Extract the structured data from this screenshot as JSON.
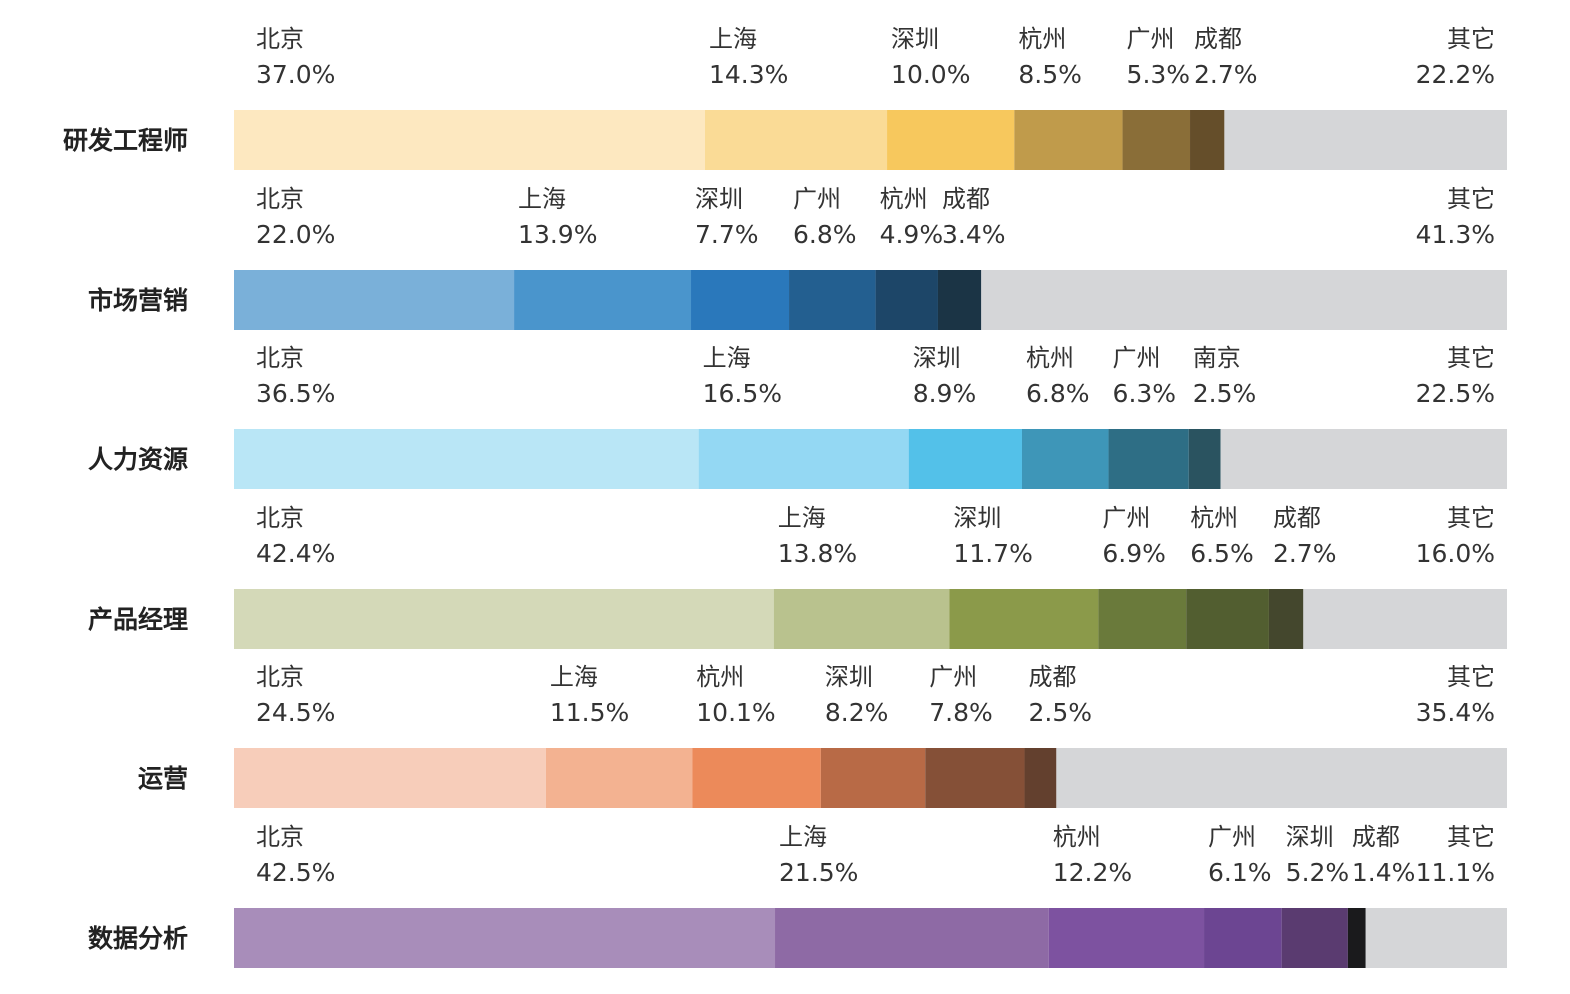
{
  "chart_data": {
    "type": "bar",
    "orientation": "horizontal-stacked-100",
    "title": "",
    "xlabel": "",
    "ylabel": "",
    "xlim": [
      0,
      100
    ],
    "grid": false,
    "legend": "none",
    "categories": [
      "研发工程师",
      "市场营销",
      "人力资源",
      "产品经理",
      "运营",
      "数据分析"
    ],
    "rows": [
      {
        "category": "研发工程师",
        "segments": [
          {
            "name": "北京",
            "value": 37.0,
            "label": "37.0%",
            "color": "#FDE8C0"
          },
          {
            "name": "上海",
            "value": 14.3,
            "label": "14.3%",
            "color": "#FADB96"
          },
          {
            "name": "深圳",
            "value": 10.0,
            "label": "10.0%",
            "color": "#F7C85D"
          },
          {
            "name": "杭州",
            "value": 8.5,
            "label": "8.5%",
            "color": "#C09B4B"
          },
          {
            "name": "广州",
            "value": 5.3,
            "label": "5.3%",
            "color": "#8A6E38"
          },
          {
            "name": "成都",
            "value": 2.7,
            "label": "2.7%",
            "color": "#654E2A"
          },
          {
            "name": "其它",
            "value": 22.2,
            "label": "22.2%",
            "color": "#D5D6D8"
          }
        ]
      },
      {
        "category": "市场营销",
        "segments": [
          {
            "name": "北京",
            "value": 22.0,
            "label": "22.0%",
            "color": "#7AB0D9"
          },
          {
            "name": "上海",
            "value": 13.9,
            "label": "13.9%",
            "color": "#4A95CC"
          },
          {
            "name": "深圳",
            "value": 7.7,
            "label": "7.7%",
            "color": "#2A78BB"
          },
          {
            "name": "广州",
            "value": 6.8,
            "label": "6.8%",
            "color": "#235F90"
          },
          {
            "name": "杭州",
            "value": 4.9,
            "label": "4.9%",
            "color": "#1D4668"
          },
          {
            "name": "成都",
            "value": 3.4,
            "label": "3.4%",
            "color": "#1B3445"
          },
          {
            "name": "其它",
            "value": 41.3,
            "label": "41.3%",
            "color": "#D5D6D8"
          }
        ]
      },
      {
        "category": "人力资源",
        "segments": [
          {
            "name": "北京",
            "value": 36.5,
            "label": "36.5%",
            "color": "#B9E6F6"
          },
          {
            "name": "上海",
            "value": 16.5,
            "label": "16.5%",
            "color": "#94D8F3"
          },
          {
            "name": "深圳",
            "value": 8.9,
            "label": "8.9%",
            "color": "#53C1E9"
          },
          {
            "name": "杭州",
            "value": 6.8,
            "label": "6.8%",
            "color": "#3E96B8"
          },
          {
            "name": "广州",
            "value": 6.3,
            "label": "6.3%",
            "color": "#2E6E85"
          },
          {
            "name": "南京",
            "value": 2.5,
            "label": "2.5%",
            "color": "#2A5360"
          },
          {
            "name": "其它",
            "value": 22.5,
            "label": "22.5%",
            "color": "#D5D6D8"
          }
        ]
      },
      {
        "category": "产品经理",
        "segments": [
          {
            "name": "北京",
            "value": 42.4,
            "label": "42.4%",
            "color": "#D4D9B8"
          },
          {
            "name": "上海",
            "value": 13.8,
            "label": "13.8%",
            "color": "#B9C28E"
          },
          {
            "name": "深圳",
            "value": 11.7,
            "label": "11.7%",
            "color": "#8B9A4A"
          },
          {
            "name": "广州",
            "value": 6.9,
            "label": "6.9%",
            "color": "#6A7A3B"
          },
          {
            "name": "杭州",
            "value": 6.5,
            "label": "6.5%",
            "color": "#525E30"
          },
          {
            "name": "成都",
            "value": 2.7,
            "label": "2.7%",
            "color": "#44472D"
          },
          {
            "name": "其它",
            "value": 16.0,
            "label": "16.0%",
            "color": "#D5D6D8"
          }
        ]
      },
      {
        "category": "运营",
        "segments": [
          {
            "name": "北京",
            "value": 24.5,
            "label": "24.5%",
            "color": "#F7CDBA"
          },
          {
            "name": "上海",
            "value": 11.5,
            "label": "11.5%",
            "color": "#F3B291"
          },
          {
            "name": "杭州",
            "value": 10.1,
            "label": "10.1%",
            "color": "#EC8A5A"
          },
          {
            "name": "深圳",
            "value": 8.2,
            "label": "8.2%",
            "color": "#B86A46"
          },
          {
            "name": "广州",
            "value": 7.8,
            "label": "7.8%",
            "color": "#855037"
          },
          {
            "name": "成都",
            "value": 2.5,
            "label": "2.5%",
            "color": "#63402E"
          },
          {
            "name": "其它",
            "value": 35.4,
            "label": "35.4%",
            "color": "#D5D6D8"
          }
        ]
      },
      {
        "category": "数据分析",
        "segments": [
          {
            "name": "北京",
            "value": 42.5,
            "label": "42.5%",
            "color": "#A88DBA"
          },
          {
            "name": "上海",
            "value": 21.5,
            "label": "21.5%",
            "color": "#8E6AA5"
          },
          {
            "name": "杭州",
            "value": 12.2,
            "label": "12.2%",
            "color": "#7D52A0"
          },
          {
            "name": "广州",
            "value": 6.1,
            "label": "6.1%",
            "color": "#6C4592"
          },
          {
            "name": "深圳",
            "value": 5.2,
            "label": "5.2%",
            "color": "#5A3B70"
          },
          {
            "name": "成都",
            "value": 1.4,
            "label": "1.4%",
            "color": "#1A1A1C"
          },
          {
            "name": "其它",
            "value": 11.1,
            "label": "11.1%",
            "color": "#D5D6D8"
          }
        ]
      }
    ]
  }
}
